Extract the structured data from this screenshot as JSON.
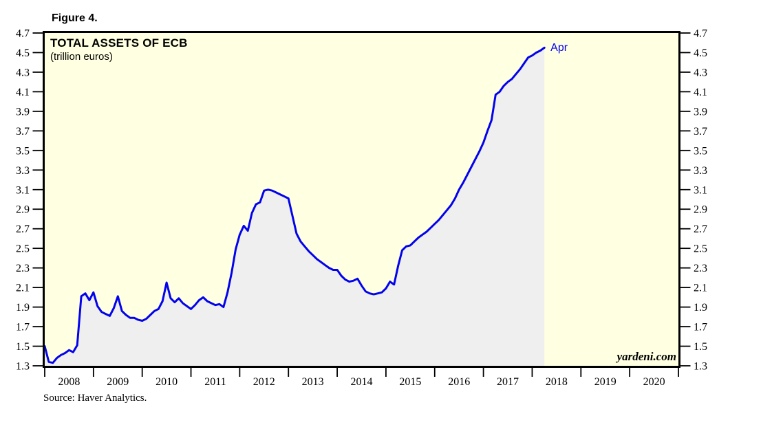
{
  "figure": {
    "label": "Figure 4."
  },
  "chart": {
    "title": "TOTAL ASSETS OF ECB",
    "subtitle": "(trillion euros)",
    "annotation": "Apr",
    "watermark": "yardeni.com",
    "source": "Source: Haver Analytics."
  },
  "colors": {
    "plot_background": "#FFFFE1",
    "area_fill": "#EFEFF0",
    "line": "#0202EE",
    "annotation_text": "#0202EE",
    "border": "#000000",
    "tick": "#000000"
  },
  "chart_data": {
    "type": "line",
    "title": "TOTAL ASSETS OF ECB",
    "subtitle": "(trillion euros)",
    "y_unit": "trillion euros",
    "ylim": [
      1.3,
      4.7
    ],
    "y_tick_step": 0.2,
    "y_ticks": [
      1.3,
      1.5,
      1.7,
      1.9,
      2.1,
      2.3,
      2.5,
      2.7,
      2.9,
      3.1,
      3.3,
      3.5,
      3.7,
      3.9,
      4.1,
      4.3,
      4.5,
      4.7
    ],
    "y_labels_both_sides": true,
    "x_domain": [
      2008,
      2021
    ],
    "x_tick_years": [
      2008,
      2009,
      2010,
      2011,
      2012,
      2013,
      2014,
      2015,
      2016,
      2017,
      2018,
      2019,
      2020
    ],
    "grid": false,
    "legend": false,
    "annotation_last_point": "Apr",
    "series": [
      {
        "name": "ECB total assets",
        "frequency": "monthly",
        "start": "2008-01",
        "end": "2018-04",
        "area_fill_under_line": true,
        "values": [
          1.5,
          1.34,
          1.33,
          1.38,
          1.41,
          1.43,
          1.46,
          1.44,
          1.51,
          2.01,
          2.04,
          1.97,
          2.05,
          1.91,
          1.85,
          1.83,
          1.81,
          1.89,
          2.01,
          1.86,
          1.82,
          1.79,
          1.79,
          1.77,
          1.76,
          1.78,
          1.82,
          1.86,
          1.88,
          1.96,
          2.15,
          1.99,
          1.95,
          1.99,
          1.94,
          1.91,
          1.88,
          1.92,
          1.97,
          2.0,
          1.96,
          1.94,
          1.92,
          1.93,
          1.9,
          2.05,
          2.25,
          2.49,
          2.64,
          2.73,
          2.68,
          2.86,
          2.95,
          2.97,
          3.09,
          3.1,
          3.09,
          3.07,
          3.05,
          3.03,
          3.01,
          2.83,
          2.65,
          2.57,
          2.52,
          2.47,
          2.43,
          2.39,
          2.36,
          2.33,
          2.3,
          2.28,
          2.28,
          2.22,
          2.18,
          2.16,
          2.17,
          2.19,
          2.12,
          2.06,
          2.04,
          2.03,
          2.04,
          2.05,
          2.09,
          2.16,
          2.13,
          2.32,
          2.48,
          2.52,
          2.53,
          2.57,
          2.61,
          2.64,
          2.67,
          2.71,
          2.75,
          2.79,
          2.84,
          2.89,
          2.94,
          3.01,
          3.1,
          3.17,
          3.25,
          3.33,
          3.41,
          3.49,
          3.58,
          3.7,
          3.81,
          4.07,
          4.1,
          4.16,
          4.2,
          4.23,
          4.28,
          4.33,
          4.39,
          4.45,
          4.47,
          4.5,
          4.52,
          4.55
        ]
      }
    ]
  }
}
